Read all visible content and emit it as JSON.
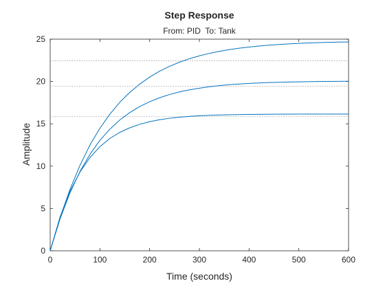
{
  "chart_data": {
    "type": "line",
    "title": "Step Response",
    "subtitle": "From: PID  To: Tank",
    "xlabel": "Time (seconds)",
    "ylabel": "Amplitude",
    "xlim": [
      0,
      600
    ],
    "ylim": [
      0,
      25
    ],
    "xticks": [
      0,
      100,
      200,
      300,
      400,
      500,
      600
    ],
    "yticks": [
      0,
      5,
      10,
      15,
      20,
      25
    ],
    "grid": false,
    "line_color": "#0072BD",
    "reference_line_color": "#999999",
    "steady_state_reference_lines": [
      15.85,
      19.45,
      22.45
    ],
    "series": [
      {
        "x": [
          0,
          20,
          40,
          60,
          80,
          100,
          120,
          140,
          160,
          180,
          200,
          220,
          240,
          260,
          280,
          300,
          320,
          340,
          360,
          380,
          400,
          420,
          440,
          460,
          480,
          500,
          520,
          540,
          560,
          580,
          600
        ],
        "y": [
          0,
          4.02,
          7.04,
          9.32,
          11.02,
          12.3,
          13.27,
          13.99,
          14.53,
          14.94,
          15.25,
          15.48,
          15.65,
          15.78,
          15.88,
          15.95,
          16.0,
          16.04,
          16.07,
          16.09,
          16.11,
          16.12,
          16.13,
          16.14,
          16.14,
          16.15,
          16.15,
          16.15,
          16.15,
          16.15,
          16.15
        ]
      },
      {
        "x": [
          0,
          20,
          40,
          60,
          80,
          100,
          120,
          140,
          160,
          180,
          200,
          220,
          240,
          260,
          280,
          300,
          320,
          340,
          360,
          380,
          400,
          420,
          440,
          460,
          480,
          500,
          520,
          540,
          560,
          580,
          600
        ],
        "y": [
          0,
          3.8,
          6.88,
          9.38,
          11.4,
          13.05,
          14.37,
          15.45,
          16.33,
          17.04,
          17.61,
          18.08,
          18.46,
          18.77,
          19.01,
          19.21,
          19.38,
          19.51,
          19.62,
          19.7,
          19.77,
          19.83,
          19.88,
          19.91,
          19.94,
          19.96,
          19.98,
          20.0,
          20.01,
          20.02,
          20.03
        ]
      },
      {
        "x": [
          0,
          20,
          40,
          60,
          80,
          100,
          120,
          140,
          160,
          180,
          200,
          220,
          240,
          260,
          280,
          300,
          320,
          340,
          360,
          380,
          400,
          420,
          440,
          460,
          480,
          500,
          520,
          540,
          560,
          580,
          600
        ],
        "y": [
          0,
          3.95,
          7.28,
          10.1,
          12.5,
          14.48,
          16.14,
          17.55,
          18.71,
          19.69,
          20.52,
          21.22,
          21.79,
          22.28,
          22.69,
          23.03,
          23.32,
          23.56,
          23.76,
          23.93,
          24.07,
          24.19,
          24.29,
          24.37,
          24.44,
          24.5,
          24.55,
          24.59,
          24.62,
          24.65,
          24.67
        ]
      }
    ]
  }
}
